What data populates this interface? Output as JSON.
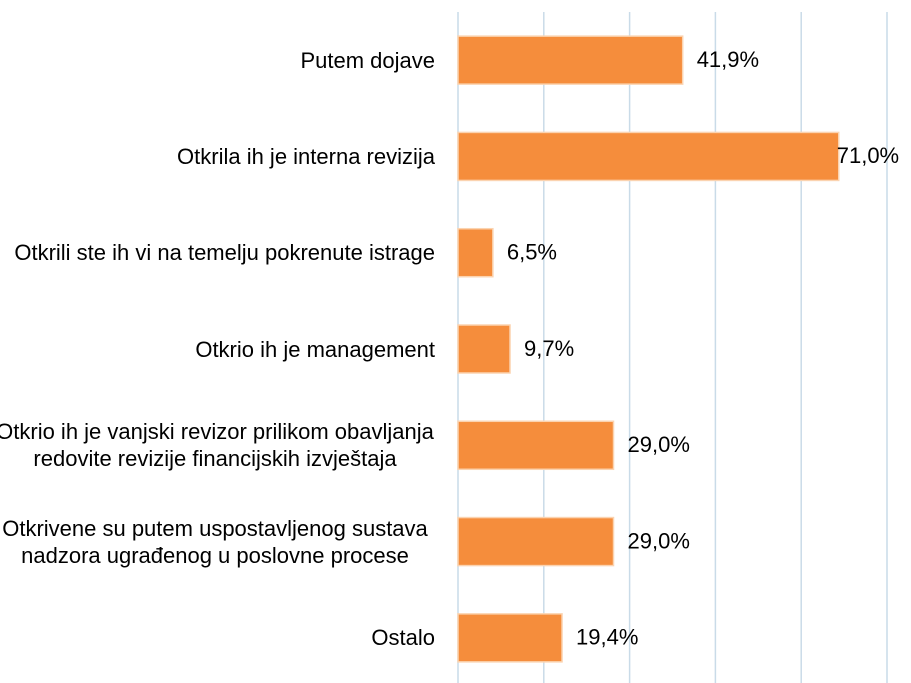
{
  "chart_data": {
    "type": "hbar",
    "categories": [
      "Putem dojave",
      "Otkrila ih je interna revizija",
      "Otkrili ste ih vi na temelju pokrenute istrage",
      "Otkrio ih je management",
      "Otkrio ih je vanjski revizor prilikom obavljanja redovite revizije financijskih izvještaja",
      "Otkrivene su putem uspostavljenog sustava nadzora ugrađenog u poslovne procese",
      "Ostalo"
    ],
    "values": [
      41.9,
      71.0,
      6.5,
      9.7,
      29.0,
      29.0,
      19.4
    ],
    "value_labels": [
      "41,9%",
      "71,0%",
      "6,5%",
      "9,7%",
      "29,0%",
      "29,0%",
      "19,4%"
    ],
    "color": "#f58d3c",
    "xlim": [
      0,
      80
    ],
    "xticks": [
      0,
      16,
      32,
      48,
      64,
      80
    ],
    "grid": true
  }
}
